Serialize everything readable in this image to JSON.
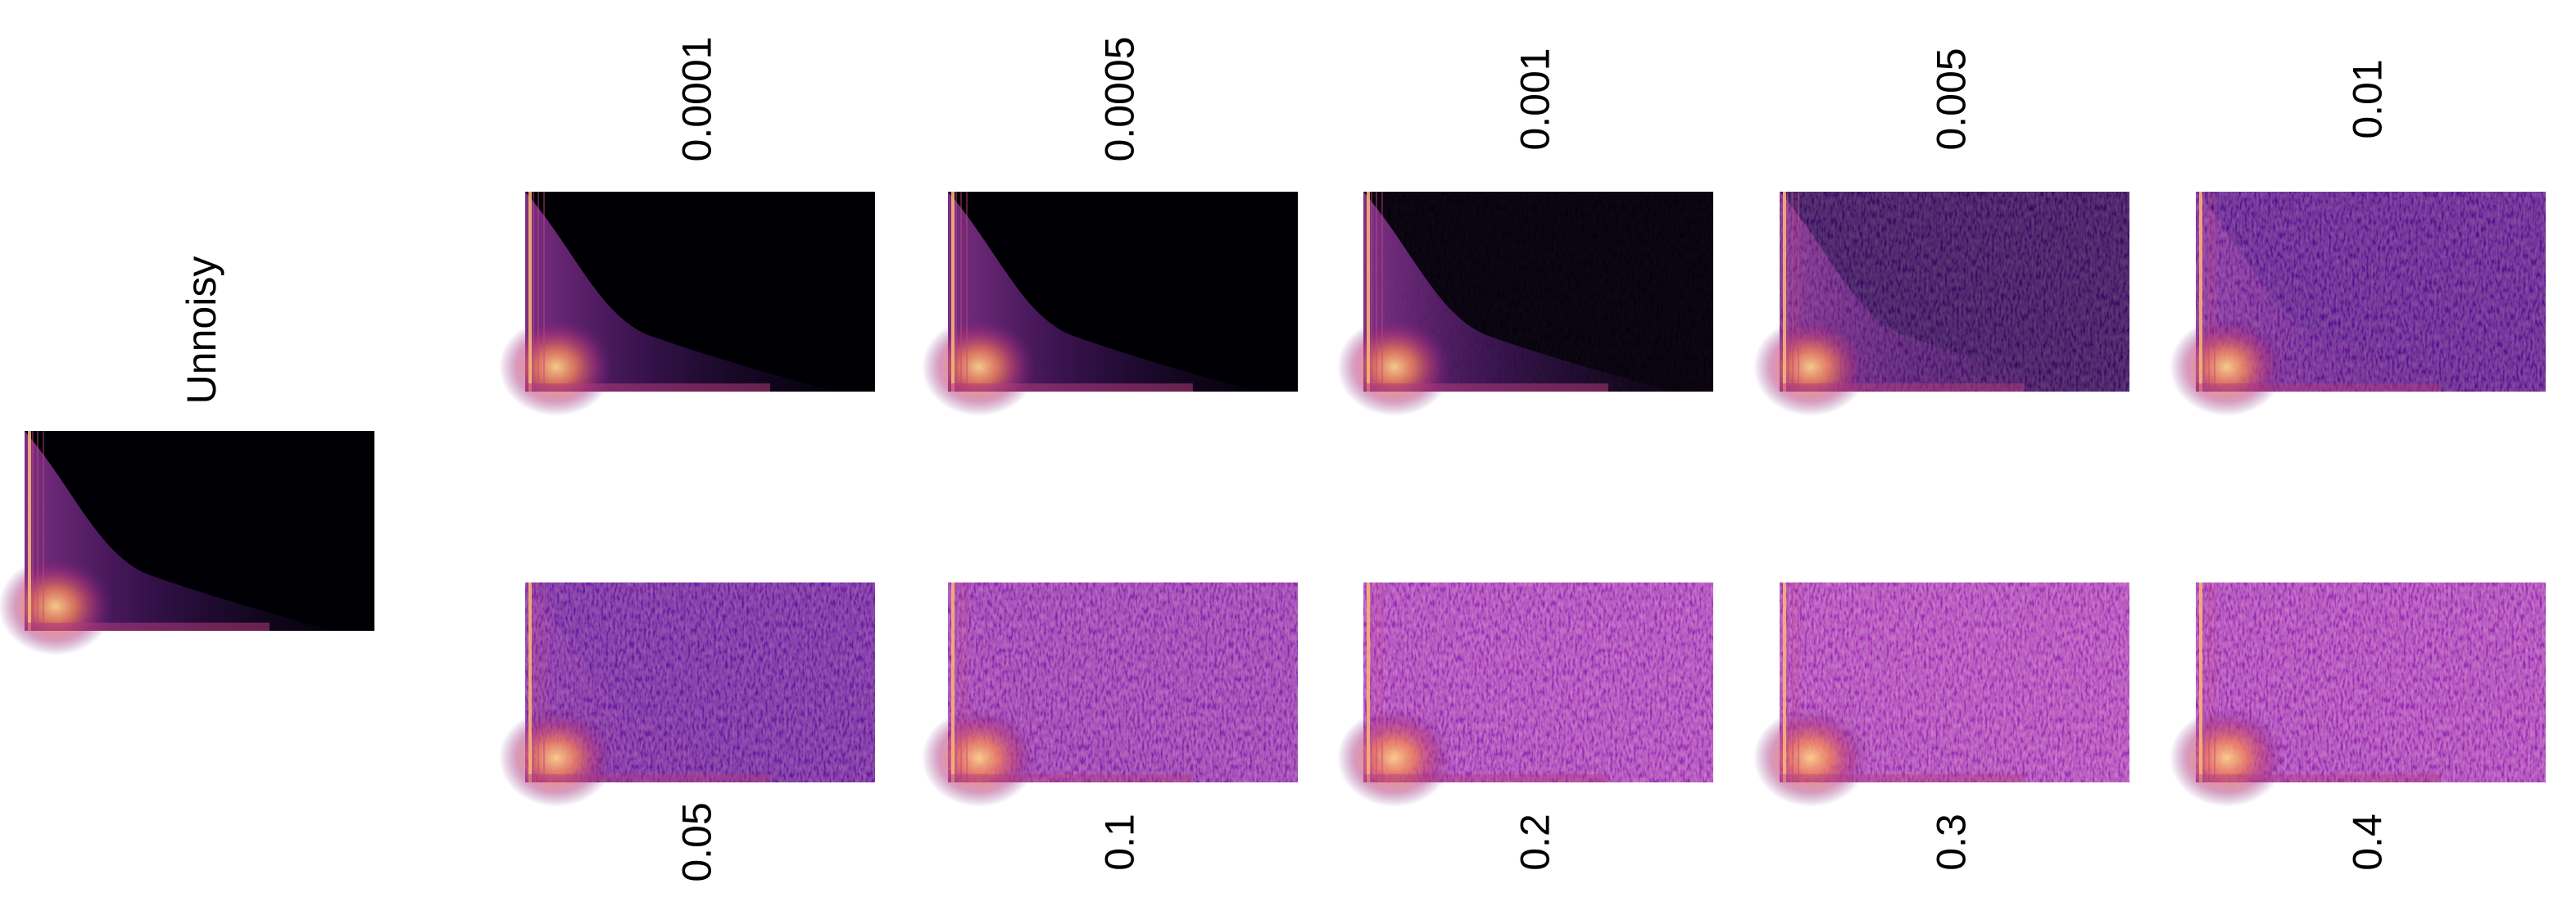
{
  "unnoisy": {
    "label": "Unnoisy"
  },
  "top_row": [
    {
      "label": "0.0001"
    },
    {
      "label": "0.0005"
    },
    {
      "label": "0.001"
    },
    {
      "label": "0.005"
    },
    {
      "label": "0.01"
    }
  ],
  "bottom_row": [
    {
      "label": "0.05"
    },
    {
      "label": "0.1"
    },
    {
      "label": "0.2"
    },
    {
      "label": "0.3"
    },
    {
      "label": "0.4"
    }
  ]
}
